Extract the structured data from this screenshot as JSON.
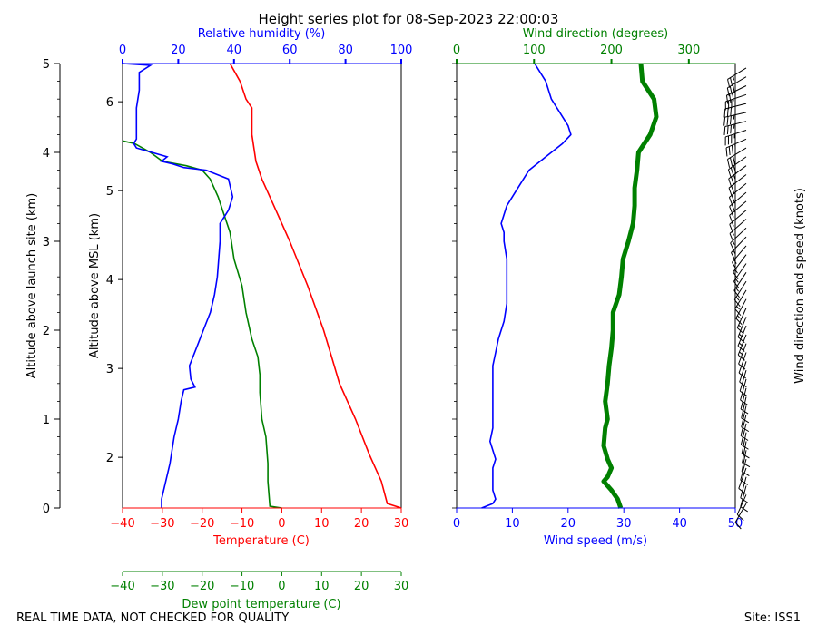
{
  "title": "Height series plot for 08-Sep-2023 22:00:03",
  "footer_left": "REAL TIME DATA, NOT CHECKED FOR QUALITY",
  "footer_right": "Site: ISS1",
  "colors": {
    "temperature": "#ff0000",
    "dewpoint": "#008000",
    "humidity": "#0000ff",
    "wind_speed": "#0000ff",
    "wind_direction": "#008000",
    "barbs": "#000000"
  },
  "chart_data": [
    {
      "type": "line",
      "panel": "thermodynamic",
      "axes": {
        "temperature": {
          "label": "Temperature (C)",
          "range": [
            -40,
            30
          ],
          "ticks": [
            -40,
            -30,
            -20,
            -10,
            0,
            10,
            20,
            30
          ]
        },
        "dewpoint": {
          "label": "Dew point temperature (C)",
          "range": [
            -40,
            30
          ],
          "ticks": [
            -40,
            -30,
            -20,
            -10,
            0,
            10,
            20,
            30
          ]
        },
        "humidity": {
          "label": "Relative humidity (%)",
          "range": [
            0,
            100
          ],
          "ticks": [
            0,
            20,
            40,
            60,
            80,
            100
          ]
        },
        "altitude_site": {
          "label": "Altitude above launch site (km)",
          "range": [
            0,
            5
          ],
          "ticks": [
            0,
            1,
            2,
            3,
            4,
            5
          ]
        },
        "altitude_msl": {
          "label": "Altitude above MSL (km)",
          "range": [
            1.43,
            6.43
          ],
          "ticks": [
            2,
            3,
            4,
            5,
            6
          ]
        }
      },
      "series": [
        {
          "key": "temperature",
          "points": [
            [
              0.0,
              30.0
            ],
            [
              0.05,
              26.5
            ],
            [
              0.3,
              25.0
            ],
            [
              0.6,
              22.0
            ],
            [
              1.0,
              18.5
            ],
            [
              1.4,
              14.5
            ],
            [
              1.7,
              12.5
            ],
            [
              2.0,
              10.5
            ],
            [
              2.5,
              6.5
            ],
            [
              3.0,
              2.0
            ],
            [
              3.4,
              -2.0
            ],
            [
              3.7,
              -5.0
            ],
            [
              3.9,
              -6.5
            ],
            [
              4.2,
              -7.5
            ],
            [
              4.5,
              -7.5
            ],
            [
              4.6,
              -9.0
            ],
            [
              4.8,
              -10.5
            ],
            [
              5.0,
              -13.0
            ]
          ]
        },
        {
          "key": "dewpoint",
          "points": [
            [
              0.0,
              0.0
            ],
            [
              0.02,
              -3.0
            ],
            [
              0.3,
              -3.5
            ],
            [
              0.5,
              -3.5
            ],
            [
              0.8,
              -4.0
            ],
            [
              1.0,
              -5.0
            ],
            [
              1.3,
              -5.5
            ],
            [
              1.5,
              -5.5
            ],
            [
              1.7,
              -6.0
            ],
            [
              1.9,
              -7.5
            ],
            [
              2.2,
              -9.0
            ],
            [
              2.5,
              -10.0
            ],
            [
              2.8,
              -12.0
            ],
            [
              3.1,
              -13.0
            ],
            [
              3.3,
              -14.5
            ],
            [
              3.5,
              -16.0
            ],
            [
              3.7,
              -18.0
            ],
            [
              3.8,
              -20.0
            ],
            [
              3.85,
              -24.0
            ],
            [
              3.9,
              -30.0
            ],
            [
              4.0,
              -33.0
            ],
            [
              4.1,
              -37.0
            ],
            [
              4.13,
              -40.0
            ]
          ]
        },
        {
          "key": "humidity",
          "points": [
            [
              0.0,
              14.0
            ],
            [
              0.1,
              14.0
            ],
            [
              0.3,
              15.5
            ],
            [
              0.5,
              17.0
            ],
            [
              0.8,
              18.5
            ],
            [
              1.0,
              20.0
            ],
            [
              1.2,
              21.0
            ],
            [
              1.33,
              22.0
            ],
            [
              1.36,
              26.0
            ],
            [
              1.45,
              24.5
            ],
            [
              1.6,
              24.0
            ],
            [
              1.8,
              26.5
            ],
            [
              2.0,
              29.0
            ],
            [
              2.2,
              31.5
            ],
            [
              2.4,
              33.0
            ],
            [
              2.6,
              34.0
            ],
            [
              2.8,
              34.5
            ],
            [
              3.0,
              35.0
            ],
            [
              3.2,
              35.0
            ],
            [
              3.35,
              38.0
            ],
            [
              3.5,
              39.5
            ],
            [
              3.7,
              38.0
            ],
            [
              3.8,
              30.0
            ],
            [
              3.83,
              22.0
            ],
            [
              3.87,
              18.0
            ],
            [
              3.9,
              14.0
            ],
            [
              3.95,
              16.0
            ],
            [
              4.05,
              5.0
            ],
            [
              4.1,
              4.0
            ],
            [
              4.15,
              5.0
            ],
            [
              4.3,
              5.0
            ],
            [
              4.5,
              5.0
            ],
            [
              4.7,
              6.0
            ],
            [
              4.9,
              6.0
            ],
            [
              4.98,
              10.0
            ],
            [
              5.0,
              0.0
            ]
          ]
        }
      ]
    },
    {
      "type": "line",
      "panel": "wind",
      "axes": {
        "wind_speed": {
          "label": "Wind speed (m/s)",
          "range": [
            0,
            50
          ],
          "ticks": [
            0,
            10,
            20,
            30,
            40,
            50
          ]
        },
        "wind_direction": {
          "label": "Wind direction (degrees)",
          "range": [
            0,
            360
          ],
          "ticks": [
            0,
            100,
            200,
            300
          ]
        },
        "barbs": {
          "label": "Wind direction and speed (knots)"
        }
      },
      "series": [
        {
          "key": "wind_speed",
          "points": [
            [
              0.0,
              4.5
            ],
            [
              0.05,
              6.5
            ],
            [
              0.1,
              7.0
            ],
            [
              0.2,
              6.5
            ],
            [
              0.3,
              6.5
            ],
            [
              0.45,
              6.5
            ],
            [
              0.55,
              7.0
            ],
            [
              0.75,
              6.0
            ],
            [
              0.9,
              6.5
            ],
            [
              1.0,
              6.5
            ],
            [
              1.2,
              6.5
            ],
            [
              1.4,
              6.5
            ],
            [
              1.6,
              6.5
            ],
            [
              1.75,
              7.0
            ],
            [
              1.9,
              7.5
            ],
            [
              2.1,
              8.5
            ],
            [
              2.3,
              9.0
            ],
            [
              2.6,
              9.0
            ],
            [
              2.8,
              9.0
            ],
            [
              3.0,
              8.5
            ],
            [
              3.1,
              8.5
            ],
            [
              3.2,
              8.0
            ],
            [
              3.4,
              9.0
            ],
            [
              3.6,
              11.0
            ],
            [
              3.8,
              13.0
            ],
            [
              3.95,
              16.0
            ],
            [
              4.1,
              19.0
            ],
            [
              4.2,
              20.5
            ],
            [
              4.3,
              20.0
            ],
            [
              4.4,
              19.0
            ],
            [
              4.6,
              17.0
            ],
            [
              4.8,
              16.0
            ],
            [
              4.9,
              15.0
            ],
            [
              5.0,
              14.0
            ]
          ]
        },
        {
          "key": "wind_direction",
          "points": [
            [
              0.0,
              212
            ],
            [
              0.1,
              208
            ],
            [
              0.2,
              200
            ],
            [
              0.3,
              190
            ],
            [
              0.35,
              195
            ],
            [
              0.45,
              200
            ],
            [
              0.55,
              195
            ],
            [
              0.7,
              190
            ],
            [
              0.9,
              192
            ],
            [
              1.0,
              195
            ],
            [
              1.2,
              192
            ],
            [
              1.4,
              195
            ],
            [
              1.6,
              197
            ],
            [
              1.8,
              200
            ],
            [
              2.0,
              202
            ],
            [
              2.2,
              202
            ],
            [
              2.4,
              210
            ],
            [
              2.6,
              213
            ],
            [
              2.8,
              215
            ],
            [
              3.0,
              222
            ],
            [
              3.2,
              228
            ],
            [
              3.4,
              230
            ],
            [
              3.6,
              230
            ],
            [
              3.8,
              233
            ],
            [
              4.0,
              235
            ],
            [
              4.2,
              250
            ],
            [
              4.4,
              258
            ],
            [
              4.6,
              255
            ],
            [
              4.8,
              240
            ],
            [
              5.0,
              238
            ]
          ]
        }
      ]
    }
  ]
}
